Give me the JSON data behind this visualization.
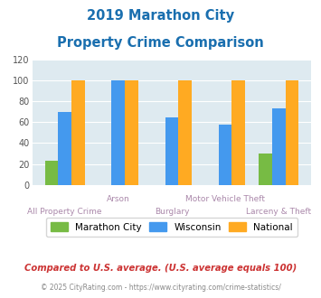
{
  "title_line1": "2019 Marathon City",
  "title_line2": "Property Crime Comparison",
  "title_color": "#1a6faf",
  "categories": [
    "All Property Crime",
    "Arson",
    "Burglary",
    "Motor Vehicle Theft",
    "Larceny & Theft"
  ],
  "marathon_city": [
    23,
    0,
    0,
    0,
    30
  ],
  "wisconsin": [
    70,
    100,
    65,
    58,
    73
  ],
  "national": [
    100,
    100,
    100,
    100,
    100
  ],
  "bar_colors": {
    "marathon_city": "#77bb44",
    "wisconsin": "#4499ee",
    "national": "#ffaa22"
  },
  "ylim": [
    0,
    120
  ],
  "yticks": [
    0,
    20,
    40,
    60,
    80,
    100,
    120
  ],
  "plot_bg": "#deeaf0",
  "footer_text1": "Compared to U.S. average. (U.S. average equals 100)",
  "footer_text2": "© 2025 CityRating.com - https://www.cityrating.com/crime-statistics/",
  "legend_labels": [
    "Marathon City",
    "Wisconsin",
    "National"
  ],
  "xlabel_top": [
    "",
    "Arson",
    "",
    "Motor Vehicle Theft",
    ""
  ],
  "xlabel_bottom": [
    "All Property Crime",
    "",
    "Burglary",
    "",
    "Larceny & Theft"
  ],
  "xlabel_color": "#aa88aa"
}
